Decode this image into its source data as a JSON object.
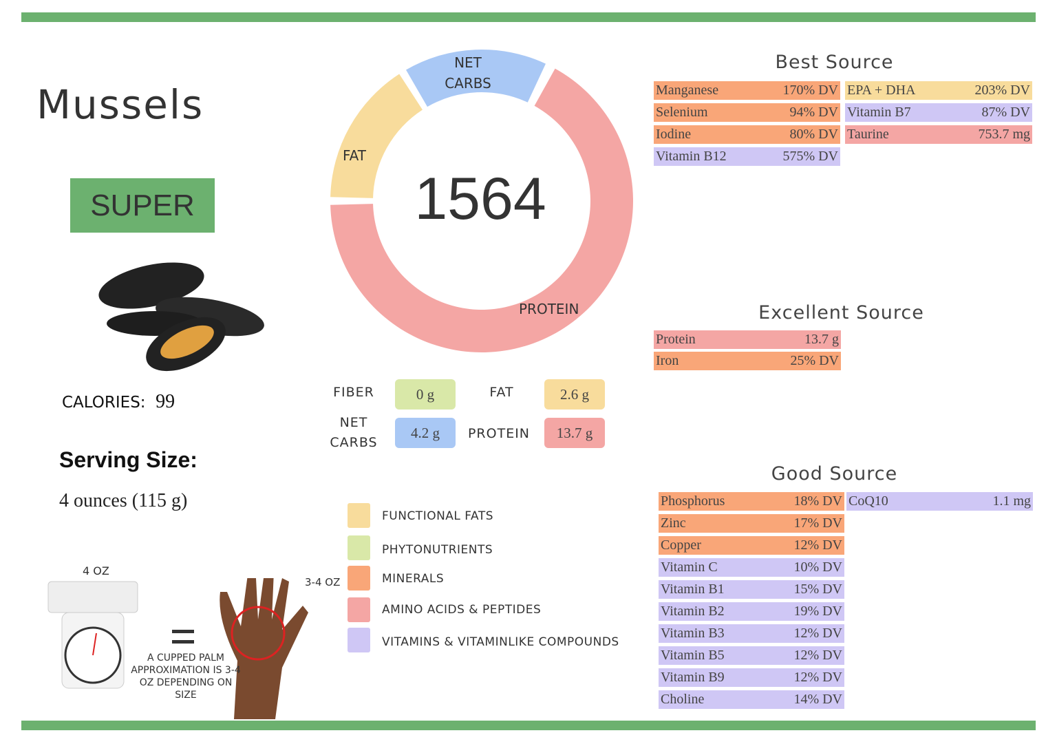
{
  "title": "Mussels",
  "badge": "SUPER",
  "calories": {
    "label": "CALORIES:",
    "value": "99"
  },
  "serving": {
    "label": "Serving Size:",
    "value": "4 ounces (115 g)"
  },
  "scale": {
    "weight": "4 OZ",
    "palm": "3-4 OZ",
    "note": "A CUPPED PALM APPROXIMATION IS 3-4 OZ DEPENDING ON SIZE"
  },
  "donut": {
    "center": "1564",
    "net_carbs": "NET CARBS",
    "fat": "FAT",
    "protein": "PROTEIN"
  },
  "macros": [
    {
      "label": "FIBER",
      "value": "0 g",
      "color": "#d9e8a8"
    },
    {
      "label": "FAT",
      "value": "2.6 g",
      "color": "#f8dc9c"
    },
    {
      "label": "NET CARBS",
      "value": "4.2 g",
      "color": "#a9c8f5"
    },
    {
      "label": "PROTEIN",
      "value": "13.7 g",
      "color": "#f4a6a4"
    }
  ],
  "legend": [
    {
      "label": "FUNCTIONAL  FATS",
      "color": "#f8dc9c"
    },
    {
      "label": "PHYTONUTRIENTS",
      "color": "#d9e8a8"
    },
    {
      "label": "MINERALS",
      "color": "#f9a678"
    },
    {
      "label": "AMINO ACIDS & PEPTIDES",
      "color": "#f4a6a4"
    },
    {
      "label": "VITAMINS & VITAMINLIKE COMPOUNDS",
      "color": "#cfc7f5"
    }
  ],
  "best": {
    "title": "Best Source",
    "left": [
      {
        "name": "Manganese",
        "value": "170% DV",
        "color": "#f9a678"
      },
      {
        "name": "Selenium",
        "value": "94% DV",
        "color": "#f9a678"
      },
      {
        "name": "Iodine",
        "value": "80% DV",
        "color": "#f9a678"
      },
      {
        "name": "Vitamin B12",
        "value": "575% DV",
        "color": "#cfc7f5"
      }
    ],
    "right": [
      {
        "name": "EPA + DHA",
        "value": "203% DV",
        "color": "#f8dc9c"
      },
      {
        "name": "Vitamin B7",
        "value": "87% DV",
        "color": "#cfc7f5"
      },
      {
        "name": "Taurine",
        "value": "753.7 mg",
        "color": "#f4a6a4"
      }
    ]
  },
  "excellent": {
    "title": "Excellent Source",
    "left": [
      {
        "name": "Protein",
        "value": "13.7 g",
        "color": "#f4a6a4"
      },
      {
        "name": "Iron",
        "value": "25% DV",
        "color": "#f9a678"
      }
    ]
  },
  "good": {
    "title": "Good Source",
    "left": [
      {
        "name": "Phosphorus",
        "value": "18% DV",
        "color": "#f9a678"
      },
      {
        "name": "Zinc",
        "value": "17% DV",
        "color": "#f9a678"
      },
      {
        "name": "Copper",
        "value": "12% DV",
        "color": "#f9a678"
      },
      {
        "name": "Vitamin C",
        "value": "10% DV",
        "color": "#cfc7f5"
      },
      {
        "name": "Vitamin B1",
        "value": "15% DV",
        "color": "#cfc7f5"
      },
      {
        "name": "Vitamin B2",
        "value": "19% DV",
        "color": "#cfc7f5"
      },
      {
        "name": "Vitamin B3",
        "value": "12% DV",
        "color": "#cfc7f5"
      },
      {
        "name": "Vitamin B5",
        "value": "12% DV",
        "color": "#cfc7f5"
      },
      {
        "name": "Vitamin B9",
        "value": "12% DV",
        "color": "#cfc7f5"
      },
      {
        "name": "Choline",
        "value": "14% DV",
        "color": "#cfc7f5"
      }
    ],
    "right": [
      {
        "name": "CoQ10",
        "value": "1.1 mg",
        "color": "#cfc7f5"
      }
    ]
  }
}
